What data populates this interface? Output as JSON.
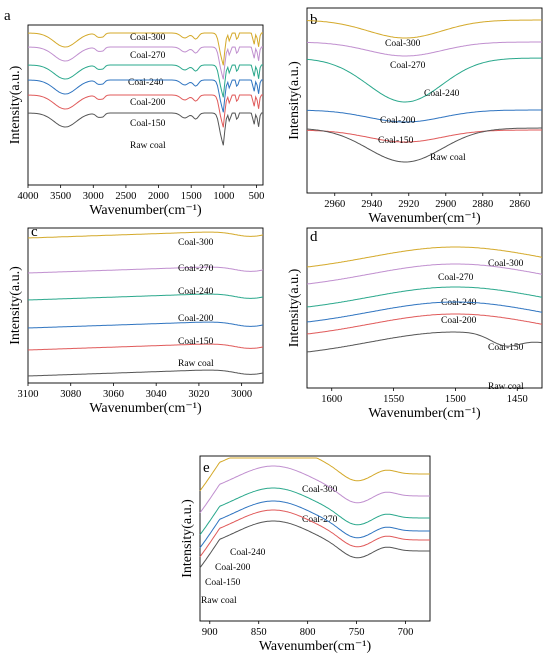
{
  "figure": {
    "xlabel": "Wavenumber(cm⁻¹)",
    "ylabel": "Intensity(a.u.)"
  },
  "series_colors": {
    "Coal-300": "#d4a92a",
    "Coal-270": "#c08fcf",
    "Coal-240": "#2aa88c",
    "Coal-200": "#2f74c0",
    "Coal-150": "#e05a5a",
    "Raw coal": "#555555"
  },
  "chart_data": [
    {
      "type": "line",
      "panel": "a",
      "xlabel": "Wavenumber(cm⁻¹)",
      "ylabel": "Intensity(a.u.)",
      "xlim": [
        4000,
        400
      ],
      "x_reversed": true,
      "xticks": [
        4000,
        3500,
        3000,
        2500,
        2000,
        1500,
        1000,
        500
      ],
      "series": [
        {
          "name": "Coal-300",
          "label": "Coal-300"
        },
        {
          "name": "Coal-270",
          "label": "Coal-270"
        },
        {
          "name": "Coal-240",
          "label": "Coal-240"
        },
        {
          "name": "Coal-200",
          "label": "Coal-200"
        },
        {
          "name": "Coal-150",
          "label": "Coal-150"
        },
        {
          "name": "Raw coal",
          "label": "Raw coal"
        }
      ]
    },
    {
      "type": "line",
      "panel": "b",
      "xlabel": "Wavenumber(cm⁻¹)",
      "ylabel": "Intensity(a.u.)",
      "xlim": [
        2975,
        2848
      ],
      "x_reversed": true,
      "xticks": [
        2960,
        2940,
        2920,
        2900,
        2880,
        2860
      ],
      "series": [
        {
          "name": "Coal-300",
          "label": "Coal-300"
        },
        {
          "name": "Coal-270",
          "label": "Coal-270"
        },
        {
          "name": "Coal-240",
          "label": "Coal-240"
        },
        {
          "name": "Coal-200",
          "label": "Coal-200"
        },
        {
          "name": "Coal-150",
          "label": "Coal-150"
        },
        {
          "name": "Raw coal",
          "label": "Raw coal"
        }
      ]
    },
    {
      "type": "line",
      "panel": "c",
      "xlabel": "Wavenumber(cm⁻¹)",
      "ylabel": "Intensity(a.u.)",
      "xlim": [
        3100,
        2990
      ],
      "x_reversed": true,
      "xticks": [
        3100,
        3080,
        3060,
        3040,
        3020,
        3000
      ],
      "series": [
        {
          "name": "Coal-300",
          "label": "Coal-300"
        },
        {
          "name": "Coal-270",
          "label": "Coal-270"
        },
        {
          "name": "Coal-240",
          "label": "Coal-240"
        },
        {
          "name": "Coal-200",
          "label": "Coal-200"
        },
        {
          "name": "Coal-150",
          "label": "Coal-150"
        },
        {
          "name": "Raw coal",
          "label": "Raw coal"
        }
      ]
    },
    {
      "type": "line",
      "panel": "d",
      "xlabel": "Wavenumber(cm⁻¹)",
      "ylabel": "Intensity(a.u.)",
      "xlim": [
        1620,
        1430
      ],
      "x_reversed": true,
      "xticks": [
        1600,
        1550,
        1500,
        1450
      ],
      "series": [
        {
          "name": "Coal-300",
          "label": "Coal-300"
        },
        {
          "name": "Coal-270",
          "label": "Coal-270"
        },
        {
          "name": "Coal-240",
          "label": "Coal-240"
        },
        {
          "name": "Coal-200",
          "label": "Coal-200"
        },
        {
          "name": "Coal-150",
          "label": "Coal-150"
        },
        {
          "name": "Raw coal",
          "label": "Raw coal"
        }
      ]
    },
    {
      "type": "line",
      "panel": "e",
      "xlabel": "Wavenumber(cm⁻¹)",
      "ylabel": "Intensity(a.u.)",
      "xlim": [
        910,
        675
      ],
      "x_reversed": true,
      "xticks": [
        900,
        850,
        800,
        750,
        700
      ],
      "series": [
        {
          "name": "Coal-300",
          "label": "Coal-300"
        },
        {
          "name": "Coal-270",
          "label": "Coal-270"
        },
        {
          "name": "Coal-240",
          "label": "Coal-240"
        },
        {
          "name": "Coal-200",
          "label": "Coal-200"
        },
        {
          "name": "Coal-150",
          "label": "Coal-150"
        },
        {
          "name": "Raw coal",
          "label": "Raw coal"
        }
      ]
    }
  ]
}
